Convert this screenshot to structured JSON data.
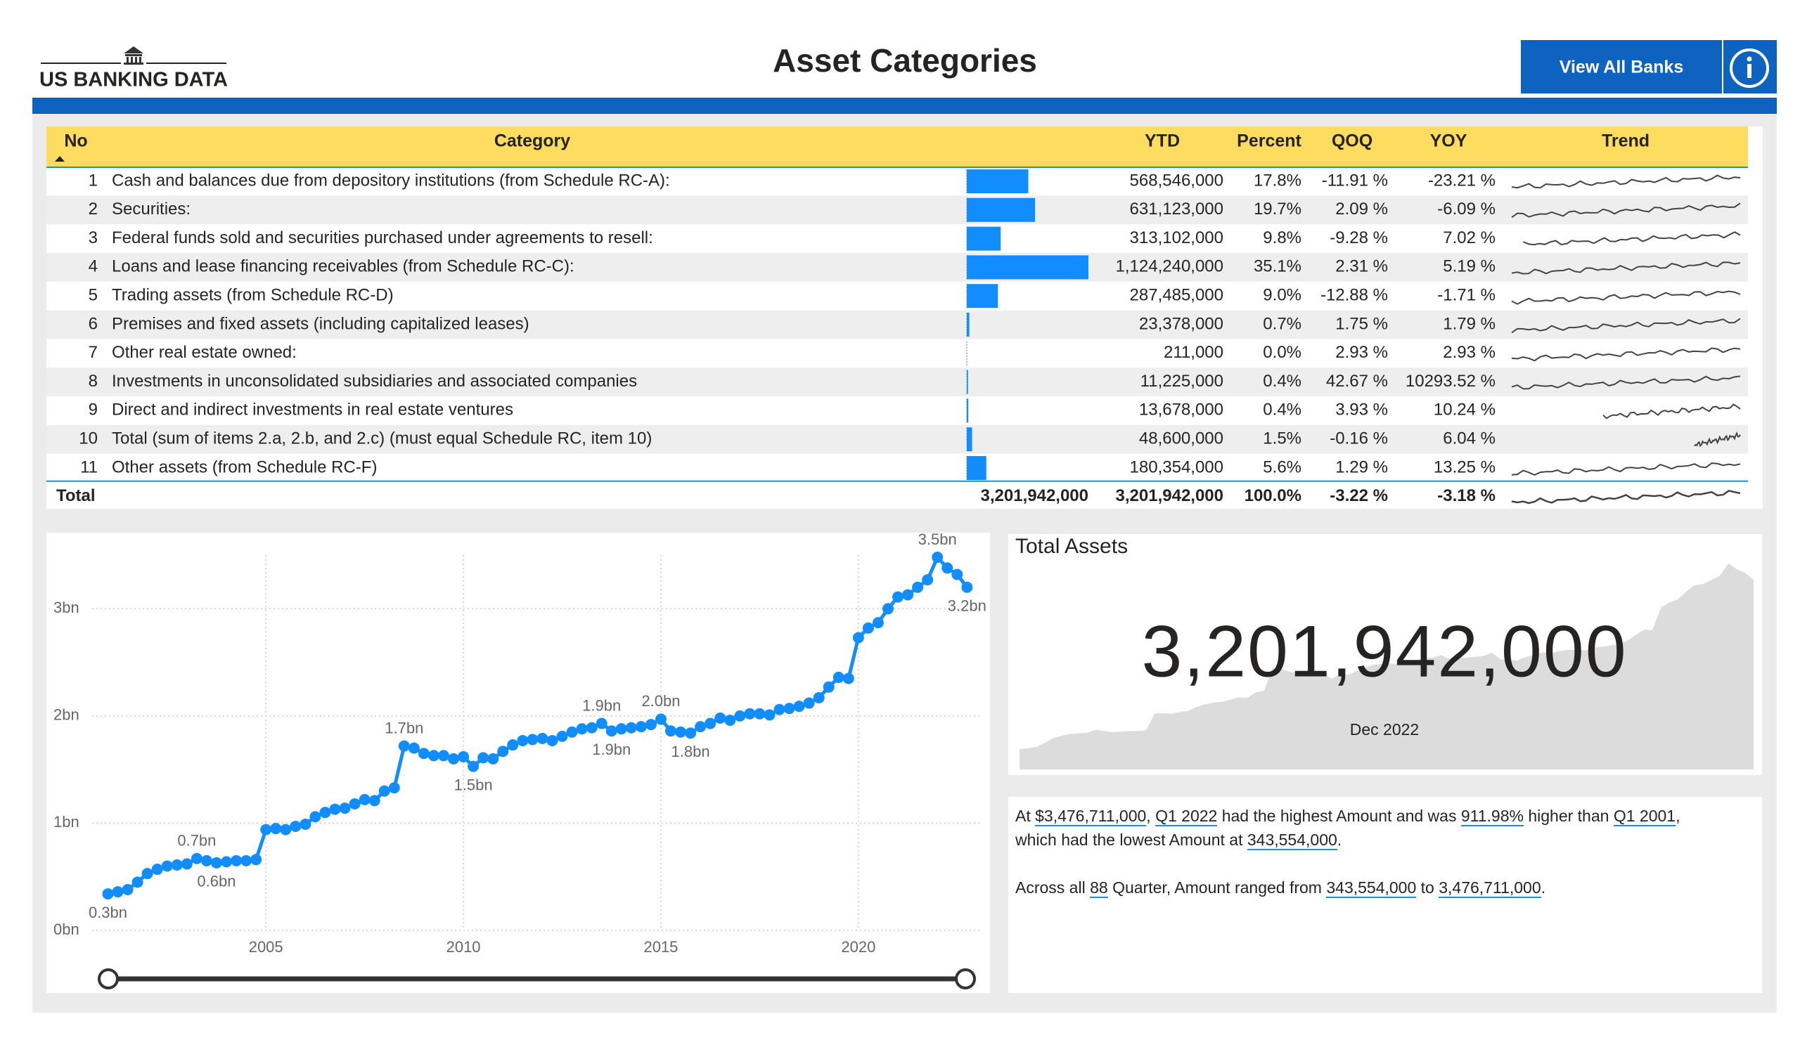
{
  "header": {
    "logo_text": "US BANKING DATA",
    "title": "Asset Categories",
    "button": "View All Banks"
  },
  "table": {
    "columns": [
      "No",
      "Category",
      "YTD",
      "Percent",
      "QOQ",
      "YOY",
      "Trend"
    ],
    "rows": [
      {
        "no": 1,
        "category": "Cash and balances due from depository institutions (from Schedule RC-A):",
        "ytd": {
          "value": 568546000,
          "label": "568,546,000"
        },
        "percent": "17.8%",
        "qoq": "-11.91 %",
        "yoy": "-23.21 %"
      },
      {
        "no": 2,
        "category": "Securities:",
        "ytd": {
          "value": 631123000,
          "label": "631,123,000"
        },
        "percent": "19.7%",
        "qoq": "2.09 %",
        "yoy": "-6.09 %"
      },
      {
        "no": 3,
        "category": "Federal funds sold and securities purchased under agreements to resell:",
        "ytd": {
          "value": 313102000,
          "label": "313,102,000"
        },
        "percent": "9.8%",
        "qoq": "-9.28 %",
        "yoy": "7.02 %"
      },
      {
        "no": 4,
        "category": "Loans and lease financing receivables (from Schedule RC-C):",
        "ytd": {
          "value": 1124240000,
          "label": "1,124,240,000"
        },
        "percent": "35.1%",
        "qoq": "2.31 %",
        "yoy": "5.19 %"
      },
      {
        "no": 5,
        "category": "Trading assets (from Schedule RC-D)",
        "ytd": {
          "value": 287485000,
          "label": "287,485,000"
        },
        "percent": "9.0%",
        "qoq": "-12.88 %",
        "yoy": "-1.71 %"
      },
      {
        "no": 6,
        "category": "Premises and fixed assets (including capitalized leases)",
        "ytd": {
          "value": 23378000,
          "label": "23,378,000"
        },
        "percent": "0.7%",
        "qoq": "1.75 %",
        "yoy": "1.79 %"
      },
      {
        "no": 7,
        "category": "Other real estate owned:",
        "ytd": {
          "value": 211000,
          "label": "211,000"
        },
        "percent": "0.0%",
        "qoq": "2.93 %",
        "yoy": "2.93 %"
      },
      {
        "no": 8,
        "category": "Investments in unconsolidated subsidiaries and associated companies",
        "ytd": {
          "value": 11225000,
          "label": "11,225,000"
        },
        "percent": "0.4%",
        "qoq": "42.67 %",
        "yoy": "10293.52 %"
      },
      {
        "no": 9,
        "category": "Direct and indirect investments in real estate ventures",
        "ytd": {
          "value": 13678000,
          "label": "13,678,000"
        },
        "percent": "0.4%",
        "qoq": "3.93 %",
        "yoy": "10.24 %"
      },
      {
        "no": 10,
        "category": "Total (sum of items 2.a, 2.b, and 2.c) (must equal Schedule RC, item 10)",
        "ytd": {
          "value": 48600000,
          "label": "48,600,000"
        },
        "percent": "1.5%",
        "qoq": "-0.16 %",
        "yoy": "6.04 %"
      },
      {
        "no": 11,
        "category": "Other assets (from Schedule RC-F)",
        "ytd": {
          "value": 180354000,
          "label": "180,354,000"
        },
        "percent": "5.6%",
        "qoq": "1.29 %",
        "yoy": "13.25 %"
      }
    ],
    "total": {
      "label": "Total",
      "bar_total": "3,201,942,000",
      "ytd": "3,201,942,000",
      "percent": "100.0%",
      "qoq": "-3.22 %",
      "yoy": "-3.18 %"
    }
  },
  "chart_data": {
    "type": "line",
    "x": [
      2001,
      2001.25,
      2001.5,
      2001.75,
      2002,
      2002.25,
      2002.5,
      2002.75,
      2003,
      2003.25,
      2003.5,
      2003.75,
      2004,
      2004.25,
      2004.5,
      2004.75,
      2005,
      2005.25,
      2005.5,
      2005.75,
      2006,
      2006.25,
      2006.5,
      2006.75,
      2007,
      2007.25,
      2007.5,
      2007.75,
      2008,
      2008.25,
      2008.5,
      2008.75,
      2009,
      2009.25,
      2009.5,
      2009.75,
      2010,
      2010.25,
      2010.5,
      2010.75,
      2011,
      2011.25,
      2011.5,
      2011.75,
      2012,
      2012.25,
      2012.5,
      2012.75,
      2013,
      2013.25,
      2013.5,
      2013.75,
      2014,
      2014.25,
      2014.5,
      2014.75,
      2015,
      2015.25,
      2015.5,
      2015.75,
      2016,
      2016.25,
      2016.5,
      2016.75,
      2017,
      2017.25,
      2017.5,
      2017.75,
      2018,
      2018.25,
      2018.5,
      2018.75,
      2019,
      2019.25,
      2019.5,
      2019.75,
      2020,
      2020.25,
      2020.5,
      2020.75,
      2021,
      2021.25,
      2021.5,
      2021.75,
      2022,
      2022.25,
      2022.5,
      2022.75
    ],
    "values": [
      0.34,
      0.36,
      0.38,
      0.45,
      0.53,
      0.57,
      0.6,
      0.61,
      0.62,
      0.67,
      0.65,
      0.63,
      0.64,
      0.65,
      0.65,
      0.66,
      0.94,
      0.95,
      0.94,
      0.97,
      0.99,
      1.06,
      1.1,
      1.13,
      1.14,
      1.18,
      1.22,
      1.21,
      1.3,
      1.33,
      1.72,
      1.7,
      1.65,
      1.63,
      1.63,
      1.6,
      1.62,
      1.53,
      1.61,
      1.6,
      1.67,
      1.73,
      1.77,
      1.78,
      1.79,
      1.77,
      1.81,
      1.85,
      1.88,
      1.89,
      1.93,
      1.86,
      1.88,
      1.89,
      1.9,
      1.92,
      1.97,
      1.86,
      1.85,
      1.84,
      1.9,
      1.93,
      1.98,
      1.96,
      2.0,
      2.02,
      2.02,
      2.01,
      2.06,
      2.07,
      2.09,
      2.12,
      2.17,
      2.27,
      2.36,
      2.35,
      2.73,
      2.82,
      2.87,
      3.0,
      3.11,
      3.13,
      3.2,
      3.27,
      3.48,
      3.38,
      3.32,
      3.2
    ],
    "value_labels": [
      "0.3bn",
      null,
      null,
      null,
      null,
      null,
      null,
      null,
      null,
      "0.7bn",
      null,
      "0.6bn",
      null,
      null,
      null,
      null,
      null,
      null,
      null,
      null,
      null,
      null,
      null,
      null,
      null,
      null,
      null,
      null,
      null,
      null,
      "1.7bn",
      null,
      null,
      null,
      null,
      null,
      null,
      "1.5bn",
      null,
      null,
      null,
      null,
      null,
      null,
      null,
      null,
      null,
      null,
      null,
      null,
      "1.9bn",
      "1.9bn",
      null,
      null,
      null,
      null,
      "2.0bn",
      null,
      null,
      "1.8bn",
      null,
      null,
      null,
      null,
      null,
      null,
      null,
      null,
      null,
      null,
      null,
      null,
      null,
      null,
      null,
      null,
      null,
      null,
      null,
      null,
      null,
      null,
      null,
      null,
      "3.5bn",
      null,
      null,
      "3.2bn"
    ],
    "color": "#118dff",
    "xlim": [
      2000.6,
      2023.1
    ],
    "xticks": [
      2005,
      2010,
      2015,
      2020
    ],
    "ylim": [
      0,
      3.5
    ],
    "yticks": [
      {
        "value": 0,
        "label": "0bn"
      },
      {
        "value": 1,
        "label": "1bn"
      },
      {
        "value": 2,
        "label": "2bn"
      },
      {
        "value": 3,
        "label": "3bn"
      }
    ],
    "grid": true
  },
  "kpi": {
    "title": "Total Assets",
    "value": "3,201,942,000",
    "date": "Dec 2022"
  },
  "narrative": {
    "paragraphs": [
      [
        [
          {
            "text": "At "
          },
          {
            "text": "$3,476,711,000",
            "link": true
          },
          {
            "text": ", "
          },
          {
            "text": "Q1 2022",
            "link": true
          },
          {
            "text": " had the highest Amount and was "
          },
          {
            "text": "911.98%",
            "link": true
          },
          {
            "text": " higher than "
          },
          {
            "text": "Q1 2001",
            "link": true
          },
          {
            "text": ","
          }
        ],
        [
          {
            "text": "which had the lowest Amount at "
          },
          {
            "text": "343,554,000",
            "link": true
          },
          {
            "text": "."
          }
        ]
      ],
      [
        [
          {
            "text": "Across all "
          },
          {
            "text": "88",
            "link": true
          },
          {
            "text": " Quarter, Amount ranged from "
          },
          {
            "text": "343,554,000",
            "link": true
          },
          {
            "text": " to "
          },
          {
            "text": "3,476,711,000",
            "link": true
          },
          {
            "text": "."
          }
        ]
      ]
    ]
  }
}
